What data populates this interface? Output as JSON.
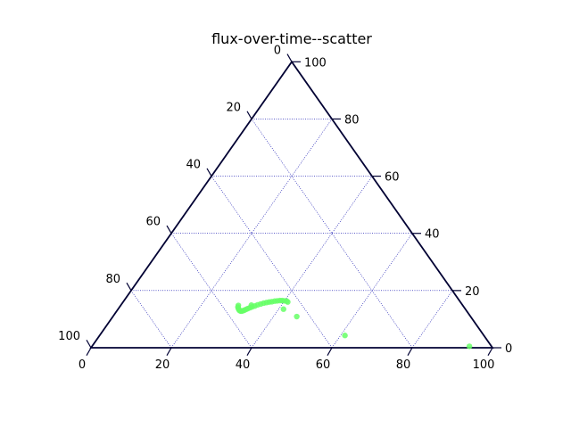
{
  "chart_data": {
    "type": "scatter",
    "subtype": "ternary",
    "title": "flux-over-time--scatter",
    "scale": 100,
    "grid": true,
    "grid_color": "#0000aa",
    "axis_color": "#000033",
    "point_color": "#66ff66",
    "tick_values": [
      0,
      20,
      40,
      60,
      80,
      100
    ],
    "axes": {
      "bottom": {
        "ticks": [
          "0",
          "20",
          "40",
          "60",
          "80",
          "100"
        ]
      },
      "right": {
        "ticks": [
          "0",
          "20",
          "40",
          "60",
          "80",
          "100"
        ]
      },
      "left": {
        "ticks": [
          "100",
          "80",
          "60",
          "40",
          "20",
          "0"
        ]
      }
    },
    "points_note": "each point: [bottom, right] in data units; left = 100 - bottom - right",
    "points": [
      [
        29.3,
        14.8
      ],
      [
        29.5,
        14.2
      ],
      [
        29.8,
        13.8
      ],
      [
        30.1,
        13.4
      ],
      [
        30.4,
        13.1
      ],
      [
        30.7,
        12.9
      ],
      [
        31.0,
        12.8
      ],
      [
        31.3,
        12.9
      ],
      [
        31.6,
        13.1
      ],
      [
        31.9,
        13.4
      ],
      [
        32.2,
        13.7
      ],
      [
        32.6,
        14.0
      ],
      [
        33.0,
        14.3
      ],
      [
        33.5,
        14.6
      ],
      [
        34.0,
        15.0
      ],
      [
        34.6,
        15.3
      ],
      [
        35.2,
        15.6
      ],
      [
        35.8,
        15.8
      ],
      [
        36.4,
        16.0
      ],
      [
        37.0,
        16.1
      ],
      [
        37.6,
        16.3
      ],
      [
        38.2,
        16.4
      ],
      [
        38.8,
        16.5
      ],
      [
        39.4,
        16.5
      ],
      [
        40.0,
        16.4
      ],
      [
        40.6,
        16.3
      ],
      [
        41.0,
        16.0
      ],
      [
        32.5,
        14.9
      ],
      [
        41.2,
        13.5
      ],
      [
        45.8,
        10.9
      ],
      [
        61.1,
        4.3
      ],
      [
        94.0,
        0.5
      ]
    ]
  }
}
